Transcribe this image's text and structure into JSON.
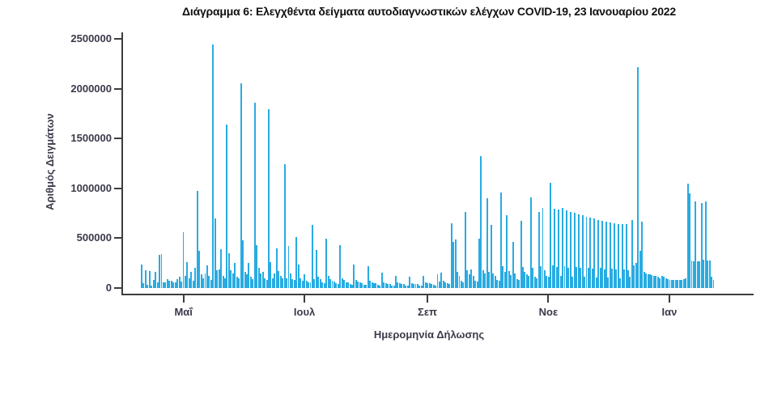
{
  "title": "Διάγραμμα 6: Ελεγχθέντα δείγματα αυτοδιαγνωστικών ελέγχων COVID-19, 23 Ιανουαρίου 2022",
  "colors": {
    "bar": "#29abe2",
    "axis": "#3d3d3d",
    "axis_text": "#3a3a4a",
    "title_text": "#111111",
    "background": "#ffffff"
  },
  "chart_data": {
    "type": "bar",
    "title": "Διάγραμμα 6: Ελεγχθέντα δείγματα αυτοδιαγνωστικών ελέγχων COVID-19, 23 Ιανουαρίου 2022",
    "xlabel": "Ημερομηνία Δήλωσης",
    "ylabel": "Αριθμός Δειγμάτων",
    "ylim": [
      0,
      2500000
    ],
    "y_ticks": [
      0,
      500000,
      1000000,
      1500000,
      2000000,
      2500000
    ],
    "y_tick_labels": [
      "0",
      "500000",
      "1000000",
      "1500000",
      "2000000",
      "2500000"
    ],
    "grid": false,
    "legend": false,
    "x_unit": "day",
    "x_start_date": "2021-04-10",
    "x_end_date": "2022-01-23",
    "x_ticks": [
      {
        "label": "Μαΐ",
        "index": 21
      },
      {
        "label": "Ιουλ",
        "index": 82
      },
      {
        "label": "Σεπ",
        "index": 144
      },
      {
        "label": "Νοε",
        "index": 205
      },
      {
        "label": "Ιαν",
        "index": 266
      }
    ],
    "values": [
      233000,
      45000,
      179000,
      35000,
      172000,
      28000,
      80000,
      165000,
      60000,
      330000,
      345000,
      60000,
      55000,
      90000,
      75000,
      75000,
      60000,
      58000,
      90000,
      111000,
      62000,
      557000,
      120000,
      260000,
      95000,
      160000,
      70000,
      200000,
      975000,
      370000,
      140000,
      95000,
      150000,
      230000,
      120000,
      85000,
      2440000,
      700000,
      180000,
      185000,
      390000,
      120000,
      95000,
      1640000,
      350000,
      180000,
      150000,
      250000,
      110000,
      95000,
      2050000,
      480000,
      160000,
      140000,
      250000,
      110000,
      90000,
      1860000,
      430000,
      200000,
      150000,
      160000,
      100000,
      85000,
      1790000,
      260000,
      95000,
      150000,
      400000,
      170000,
      120000,
      100000,
      1240000,
      95000,
      420000,
      150000,
      90000,
      80000,
      510000,
      233000,
      100000,
      75000,
      138000,
      70000,
      55000,
      60000,
      630000,
      90000,
      380000,
      110000,
      90000,
      55000,
      50000,
      495000,
      120000,
      90000,
      70000,
      65000,
      45000,
      40000,
      427000,
      100000,
      80000,
      60000,
      55000,
      38000,
      35000,
      233000,
      80000,
      65000,
      55000,
      50000,
      35000,
      32000,
      219000,
      70000,
      55000,
      48000,
      45000,
      30000,
      28000,
      152000,
      60000,
      48000,
      42000,
      40000,
      28000,
      26000,
      124000,
      55000,
      45000,
      40000,
      38000,
      26000,
      25000,
      111000,
      52000,
      44000,
      40000,
      38000,
      26000,
      25000,
      124000,
      58000,
      48000,
      45000,
      42000,
      30000,
      28000,
      138000,
      65000,
      152000,
      75000,
      60000,
      45000,
      40000,
      647000,
      460000,
      485000,
      160000,
      120000,
      70000,
      60000,
      766000,
      180000,
      140000,
      190000,
      120000,
      70000,
      65000,
      495000,
      1320000,
      180000,
      150000,
      900000,
      160000,
      630000,
      150000,
      120000,
      80000,
      75000,
      955000,
      220000,
      160000,
      730000,
      170000,
      130000,
      460000,
      150000,
      90000,
      85000,
      676000,
      210000,
      160000,
      140000,
      120000,
      910000,
      200000,
      110000,
      100000,
      760000,
      220000,
      800000,
      180000,
      120000,
      110000,
      1055000,
      230000,
      795000,
      210000,
      790000,
      120000,
      800000,
      220000,
      780000,
      205000,
      765000,
      115000,
      755000,
      210000,
      740000,
      200000,
      730000,
      110000,
      715000,
      205000,
      705000,
      195000,
      695000,
      105000,
      680000,
      200000,
      670000,
      190000,
      665000,
      105000,
      655000,
      195000,
      650000,
      185000,
      645000,
      100000,
      640000,
      185000,
      640000,
      180000,
      110000,
      680000,
      230000,
      250000,
      2220000,
      370000,
      665000,
      160000,
      150000,
      140000,
      135000,
      130000,
      125000,
      120000,
      110000,
      100000,
      120000,
      115000,
      95000,
      90000,
      85000,
      85000,
      80000,
      85000,
      80000,
      80000,
      85000,
      90000,
      95000,
      1050000,
      950000,
      275000,
      270000,
      870000,
      265000,
      270000,
      855000,
      285000,
      870000,
      280000,
      275000,
      110000,
      80000
    ]
  }
}
